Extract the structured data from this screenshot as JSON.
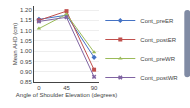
{
  "chart_data": {
    "type": "line",
    "x": [
      0,
      45,
      90
    ],
    "series": [
      {
        "name": "Cont_preER",
        "color": "#4472c4",
        "marker": "diamond",
        "values": [
          1.155,
          1.175,
          0.97
        ]
      },
      {
        "name": "Cont_postER",
        "color": "#c0504d",
        "marker": "square",
        "values": [
          1.15,
          1.195,
          0.91
        ]
      },
      {
        "name": "Cont_preWR",
        "color": "#9bbb59",
        "marker": "triangle-up",
        "values": [
          1.11,
          1.18,
          0.995
        ]
      },
      {
        "name": "Cont_postWR",
        "color": "#8064a2",
        "marker": "x",
        "values": [
          1.145,
          1.165,
          0.875
        ]
      }
    ],
    "xlabel": "Angle of Shoulder Elevation (degrees)",
    "ylabel": "Mean AHD (cm)",
    "xlim": [
      -8,
      98
    ],
    "xticks": [
      0,
      45,
      90
    ],
    "ylim": [
      0.85,
      1.22
    ],
    "yticks": [
      0.85,
      {
        "value": 0.9,
        "label": "0.90"
      },
      0.95,
      {
        "value": 1.0,
        "label": "1.00"
      },
      1.05,
      {
        "value": 1.1,
        "label": "1.10"
      },
      1.15,
      {
        "value": 1.2,
        "label": "1.20"
      }
    ],
    "grid": true,
    "legend": "right",
    "background_color": "#ffffff"
  }
}
